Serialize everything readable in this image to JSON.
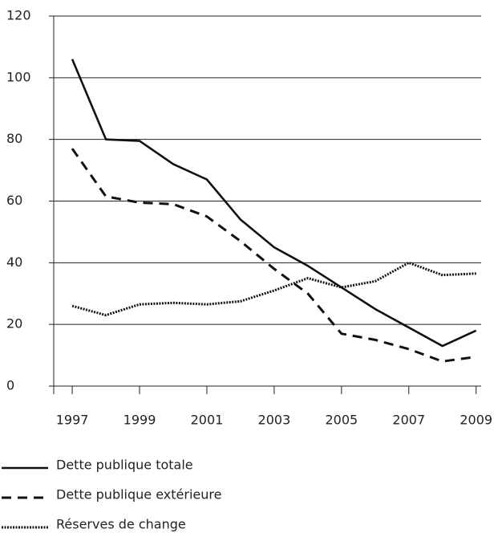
{
  "chart_data": {
    "type": "line",
    "x": [
      1997,
      1998,
      1999,
      2000,
      2001,
      2002,
      2003,
      2004,
      2005,
      2006,
      2007,
      2008,
      2009
    ],
    "series": [
      {
        "name": "Dette publique totale",
        "color": "#111111",
        "style": "solid",
        "values": [
          106,
          80,
          79.5,
          72,
          67,
          54,
          45,
          39,
          32,
          25,
          19,
          13,
          18
        ]
      },
      {
        "name": "Dette publique extérieure",
        "color": "#111111",
        "style": "dashed",
        "values": [
          77,
          61.5,
          59.5,
          59,
          55,
          47,
          38,
          30,
          17,
          15,
          12,
          8,
          9.5
        ]
      },
      {
        "name": "Réserves de change",
        "color": "#111111",
        "style": "dotted",
        "values": [
          26,
          23,
          26.5,
          27,
          26.5,
          27.5,
          31,
          35,
          32,
          34,
          40,
          36,
          36.5
        ]
      }
    ],
    "xlim": [
      1996.45,
      2009.15
    ],
    "xticks": [
      1997,
      1999,
      2001,
      2003,
      2005,
      2007,
      2009
    ],
    "ylim": [
      0,
      120
    ],
    "yticks": [
      0,
      20,
      40,
      60,
      80,
      100,
      120
    ],
    "grid": true
  }
}
